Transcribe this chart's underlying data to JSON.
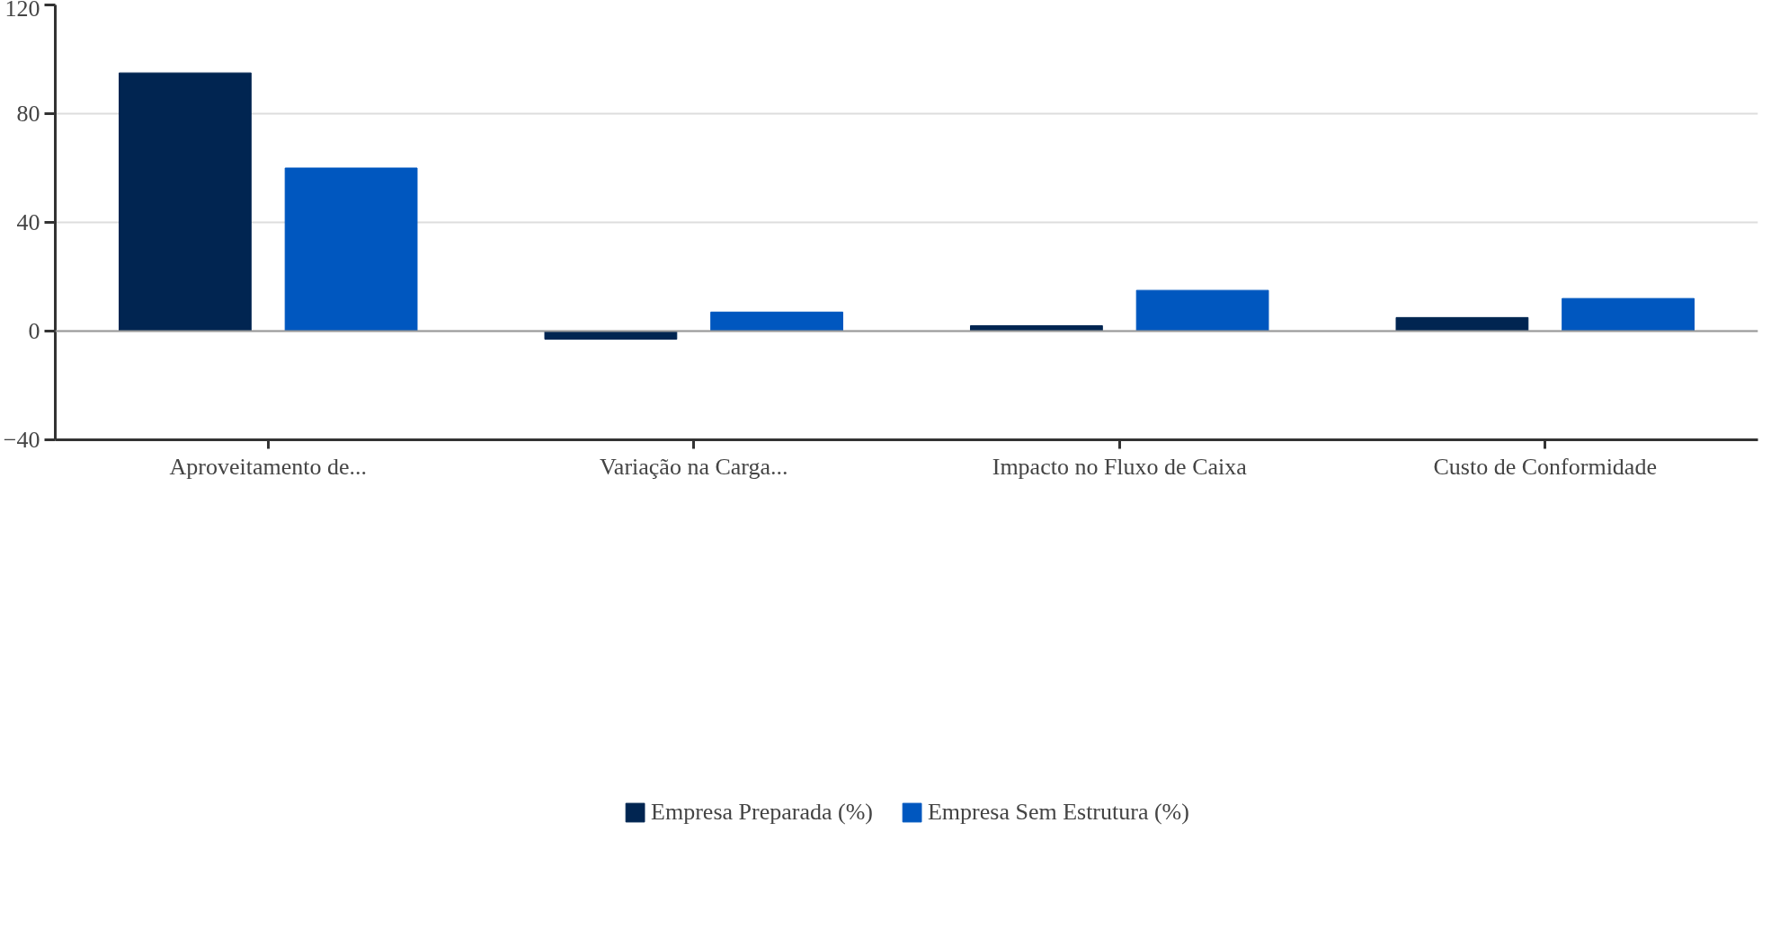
{
  "chart_data": {
    "type": "bar",
    "categories": [
      "Aproveitamento de...",
      "Variação na Carga...",
      "Impacto no Fluxo de Caixa",
      "Custo de Conformidade"
    ],
    "series": [
      {
        "name": "Empresa Preparada (%)",
        "color": "#012551",
        "values": [
          95,
          -3,
          2,
          5
        ]
      },
      {
        "name": "Empresa Sem Estrutura (%)",
        "color": "#0057bf",
        "values": [
          60,
          7,
          15,
          12
        ]
      }
    ],
    "ylim": [
      -40,
      120
    ],
    "yticks": [
      -40,
      0,
      40,
      80,
      120
    ],
    "grid": "y",
    "legend": "bottom",
    "ref_lines": [
      {
        "axis": "y",
        "value": 0,
        "color": "#999999"
      }
    ]
  }
}
